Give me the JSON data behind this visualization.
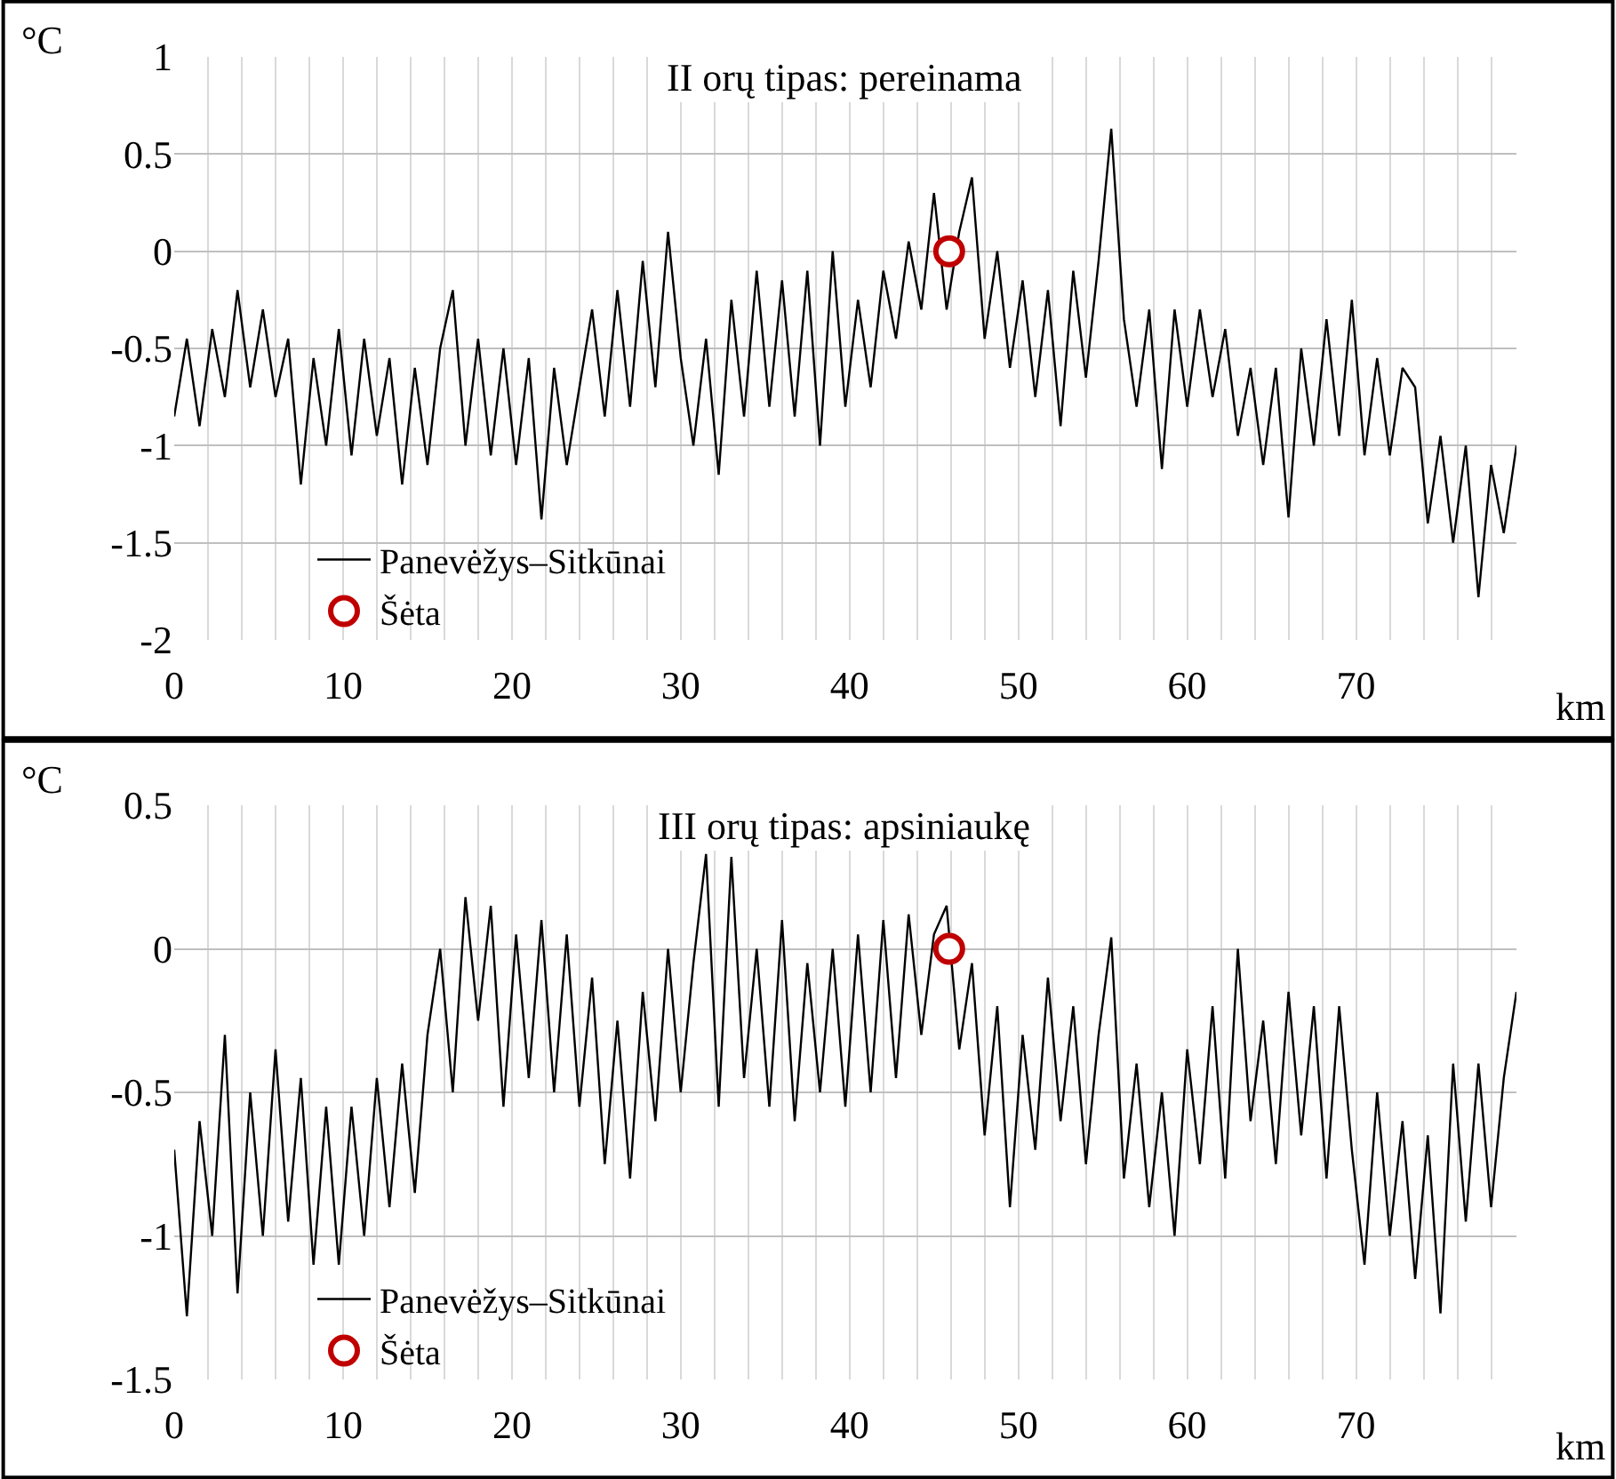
{
  "chart_data": [
    {
      "type": "line",
      "title": "II orų tipas: pereinama",
      "xlabel": "km",
      "ylabel": "°C",
      "grid": true,
      "legend": "bottom left",
      "line_style": "solid",
      "xlim": [
        0,
        79.5
      ],
      "ylim": [
        -2,
        1
      ],
      "yticks": [
        -2,
        -1.5,
        -1,
        -0.5,
        0,
        0.5,
        1
      ],
      "xticks": [
        0,
        {
          "value": 2,
          "label": null
        },
        {
          "value": 4,
          "label": null
        },
        {
          "value": 6,
          "label": null
        },
        {
          "value": 8,
          "label": null
        },
        10,
        {
          "value": 12,
          "label": null
        },
        {
          "value": 14,
          "label": null
        },
        {
          "value": 16,
          "label": null
        },
        {
          "value": 18,
          "label": null
        },
        20,
        {
          "value": 22,
          "label": null
        },
        {
          "value": 24,
          "label": null
        },
        {
          "value": 26,
          "label": null
        },
        {
          "value": 28,
          "label": null
        },
        30,
        {
          "value": 32,
          "label": null
        },
        {
          "value": 34,
          "label": null
        },
        {
          "value": 36,
          "label": null
        },
        {
          "value": 38,
          "label": null
        },
        40,
        {
          "value": 42,
          "label": null
        },
        {
          "value": 44,
          "label": null
        },
        {
          "value": 46,
          "label": null
        },
        {
          "value": 48,
          "label": null
        },
        50,
        {
          "value": 52,
          "label": null
        },
        {
          "value": 54,
          "label": null
        },
        {
          "value": 56,
          "label": null
        },
        {
          "value": 58,
          "label": null
        },
        60,
        {
          "value": 62,
          "label": null
        },
        {
          "value": 64,
          "label": null
        },
        {
          "value": 66,
          "label": null
        },
        {
          "value": 68,
          "label": null
        },
        70,
        {
          "value": 72,
          "label": null
        },
        {
          "value": 74,
          "label": null
        },
        {
          "value": 76,
          "label": null
        },
        {
          "value": 78,
          "label": null
        }
      ],
      "series": [
        {
          "name": "Panevėžys–Sitkūnai",
          "marker": "none",
          "color": "#000000",
          "x": [
            0,
            0.75,
            1.5,
            2.25,
            3,
            3.75,
            4.5,
            5.25,
            6,
            6.75,
            7.5,
            8.25,
            9,
            9.75,
            10.5,
            11.25,
            12,
            12.75,
            13.5,
            14.25,
            15,
            15.75,
            16.5,
            17.25,
            18,
            18.75,
            19.5,
            20.25,
            21,
            21.75,
            22.5,
            23.25,
            24,
            24.75,
            25.5,
            26.25,
            27,
            27.75,
            28.5,
            29.25,
            30,
            30.75,
            31.5,
            32.25,
            33,
            33.75,
            34.5,
            35.25,
            36,
            36.75,
            37.5,
            38.25,
            39,
            39.75,
            40.5,
            41.25,
            42,
            42.75,
            43.5,
            44.25,
            45,
            45.75,
            46.5,
            47.25,
            48,
            48.75,
            49.5,
            50.25,
            51,
            51.75,
            52.5,
            53.25,
            54,
            54.75,
            55.5,
            56.25,
            57,
            57.75,
            58.5,
            59.25,
            60,
            60.75,
            61.5,
            62.25,
            63,
            63.75,
            64.5,
            65.25,
            66,
            66.75,
            67.5,
            68.25,
            69,
            69.75,
            70.5,
            71.25,
            72,
            72.75,
            73.5,
            74.25,
            75,
            75.75,
            76.5,
            77.25,
            78,
            78.75,
            79.5
          ],
          "values": [
            -0.85,
            -0.45,
            -0.9,
            -0.4,
            -0.75,
            -0.2,
            -0.7,
            -0.3,
            -0.75,
            -0.45,
            -1.2,
            -0.55,
            -1.0,
            -0.4,
            -1.05,
            -0.45,
            -0.95,
            -0.55,
            -1.2,
            -0.6,
            -1.1,
            -0.5,
            -0.2,
            -1.0,
            -0.45,
            -1.05,
            -0.5,
            -1.1,
            -0.55,
            -1.38,
            -0.6,
            -1.1,
            -0.7,
            -0.3,
            -0.85,
            -0.2,
            -0.8,
            -0.05,
            -0.7,
            0.1,
            -0.55,
            -1.0,
            -0.45,
            -1.15,
            -0.25,
            -0.85,
            -0.1,
            -0.8,
            -0.15,
            -0.85,
            -0.1,
            -1.0,
            0.0,
            -0.8,
            -0.25,
            -0.7,
            -0.1,
            -0.45,
            0.05,
            -0.3,
            0.3,
            -0.3,
            0.1,
            0.38,
            -0.45,
            0.0,
            -0.6,
            -0.15,
            -0.75,
            -0.2,
            -0.9,
            -0.1,
            -0.65,
            -0.05,
            0.63,
            -0.35,
            -0.8,
            -0.3,
            -1.12,
            -0.3,
            -0.8,
            -0.3,
            -0.75,
            -0.4,
            -0.95,
            -0.6,
            -1.1,
            -0.6,
            -1.37,
            -0.5,
            -1.0,
            -0.35,
            -0.95,
            -0.25,
            -1.05,
            -0.55,
            -1.05,
            -0.6,
            -0.7,
            -1.4,
            -0.95,
            -1.5,
            -1.0,
            -1.78,
            -1.1,
            -1.45,
            -1.0
          ]
        },
        {
          "name": "Šėta",
          "type": "scatter",
          "marker": "circle",
          "color": "#c00000",
          "x": [
            45.9
          ],
          "values": [
            0
          ]
        }
      ]
    },
    {
      "type": "line",
      "title": "III orų tipas: apsiniaukę",
      "xlabel": "km",
      "ylabel": "°C",
      "grid": true,
      "legend": "bottom left",
      "line_style": "solid",
      "xlim": [
        0,
        79.5
      ],
      "ylim": [
        -1.5,
        0.5
      ],
      "yticks": [
        -1.5,
        -1,
        -0.5,
        0,
        0.5
      ],
      "xticks": [
        0,
        {
          "value": 2,
          "label": null
        },
        {
          "value": 4,
          "label": null
        },
        {
          "value": 6,
          "label": null
        },
        {
          "value": 8,
          "label": null
        },
        10,
        {
          "value": 12,
          "label": null
        },
        {
          "value": 14,
          "label": null
        },
        {
          "value": 16,
          "label": null
        },
        {
          "value": 18,
          "label": null
        },
        20,
        {
          "value": 22,
          "label": null
        },
        {
          "value": 24,
          "label": null
        },
        {
          "value": 26,
          "label": null
        },
        {
          "value": 28,
          "label": null
        },
        30,
        {
          "value": 32,
          "label": null
        },
        {
          "value": 34,
          "label": null
        },
        {
          "value": 36,
          "label": null
        },
        {
          "value": 38,
          "label": null
        },
        40,
        {
          "value": 42,
          "label": null
        },
        {
          "value": 44,
          "label": null
        },
        {
          "value": 46,
          "label": null
        },
        {
          "value": 48,
          "label": null
        },
        50,
        {
          "value": 52,
          "label": null
        },
        {
          "value": 54,
          "label": null
        },
        {
          "value": 56,
          "label": null
        },
        {
          "value": 58,
          "label": null
        },
        60,
        {
          "value": 62,
          "label": null
        },
        {
          "value": 64,
          "label": null
        },
        {
          "value": 66,
          "label": null
        },
        {
          "value": 68,
          "label": null
        },
        70,
        {
          "value": 72,
          "label": null
        },
        {
          "value": 74,
          "label": null
        },
        {
          "value": 76,
          "label": null
        },
        {
          "value": 78,
          "label": null
        }
      ],
      "series": [
        {
          "name": "Panevėžys–Sitkūnai",
          "marker": "none",
          "color": "#000000",
          "x": [
            0,
            0.75,
            1.5,
            2.25,
            3,
            3.75,
            4.5,
            5.25,
            6,
            6.75,
            7.5,
            8.25,
            9,
            9.75,
            10.5,
            11.25,
            12,
            12.75,
            13.5,
            14.25,
            15,
            15.75,
            16.5,
            17.25,
            18,
            18.75,
            19.5,
            20.25,
            21,
            21.75,
            22.5,
            23.25,
            24,
            24.75,
            25.5,
            26.25,
            27,
            27.75,
            28.5,
            29.25,
            30,
            30.75,
            31.5,
            32.25,
            33,
            33.75,
            34.5,
            35.25,
            36,
            36.75,
            37.5,
            38.25,
            39,
            39.75,
            40.5,
            41.25,
            42,
            42.75,
            43.5,
            44.25,
            45,
            45.75,
            46.5,
            47.25,
            48,
            48.75,
            49.5,
            50.25,
            51,
            51.75,
            52.5,
            53.25,
            54,
            54.75,
            55.5,
            56.25,
            57,
            57.75,
            58.5,
            59.25,
            60,
            60.75,
            61.5,
            62.25,
            63,
            63.75,
            64.5,
            65.25,
            66,
            66.75,
            67.5,
            68.25,
            69,
            69.75,
            70.5,
            71.25,
            72,
            72.75,
            73.5,
            74.25,
            75,
            75.75,
            76.5,
            77.25,
            78,
            78.75,
            79.5
          ],
          "values": [
            -0.7,
            -1.28,
            -0.6,
            -1.0,
            -0.3,
            -1.2,
            -0.5,
            -1.0,
            -0.35,
            -0.95,
            -0.45,
            -1.1,
            -0.55,
            -1.1,
            -0.55,
            -1.0,
            -0.45,
            -0.9,
            -0.4,
            -0.85,
            -0.3,
            0.0,
            -0.5,
            0.18,
            -0.25,
            0.15,
            -0.55,
            0.05,
            -0.45,
            0.1,
            -0.5,
            0.05,
            -0.55,
            -0.1,
            -0.75,
            -0.25,
            -0.8,
            -0.15,
            -0.6,
            0.0,
            -0.5,
            -0.05,
            0.33,
            -0.55,
            0.32,
            -0.45,
            0.0,
            -0.55,
            0.1,
            -0.6,
            -0.05,
            -0.5,
            0.0,
            -0.55,
            0.05,
            -0.5,
            0.1,
            -0.45,
            0.12,
            -0.3,
            0.05,
            0.15,
            -0.35,
            -0.05,
            -0.65,
            -0.2,
            -0.9,
            -0.3,
            -0.7,
            -0.1,
            -0.6,
            -0.2,
            -0.75,
            -0.3,
            0.04,
            -0.8,
            -0.4,
            -0.9,
            -0.5,
            -1.0,
            -0.35,
            -0.75,
            -0.2,
            -0.8,
            0.0,
            -0.6,
            -0.25,
            -0.75,
            -0.15,
            -0.65,
            -0.2,
            -0.8,
            -0.2,
            -0.7,
            -1.1,
            -0.5,
            -1.0,
            -0.6,
            -1.15,
            -0.65,
            -1.27,
            -0.4,
            -0.95,
            -0.4,
            -0.9,
            -0.45,
            -0.15
          ]
        },
        {
          "name": "Šėta",
          "type": "scatter",
          "marker": "circle",
          "color": "#c00000",
          "x": [
            45.9
          ],
          "values": [
            0
          ]
        }
      ]
    }
  ]
}
